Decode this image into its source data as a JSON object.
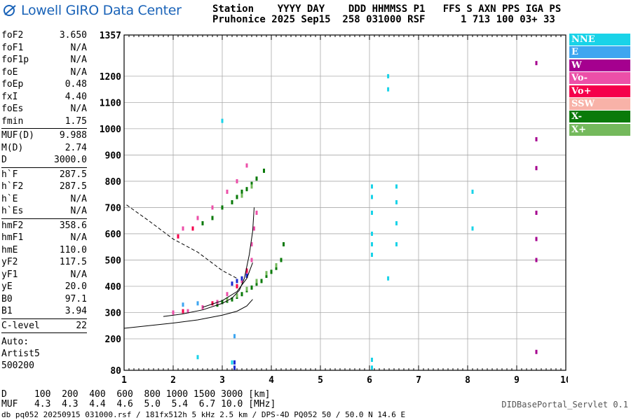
{
  "logo": {
    "text": "Lowell GIRO Data Center"
  },
  "header": {
    "line1": "Station    YYYY DAY    DDD HHMMSS P1   FFS S AXN PPS IGA PS",
    "line2": "Pruhonice 2025 Sep15  258 031000 RSF      1 713 100 03+ 33"
  },
  "params": {
    "group1": [
      {
        "label": "foF2",
        "value": "3.650"
      },
      {
        "label": "foF1",
        "value": "N/A"
      },
      {
        "label": "foF1p",
        "value": "N/A"
      },
      {
        "label": "foE",
        "value": "N/A"
      },
      {
        "label": "foEp",
        "value": "0.48"
      },
      {
        "label": "fxI",
        "value": "4.40"
      },
      {
        "label": "foEs",
        "value": "N/A"
      },
      {
        "label": "fmin",
        "value": "1.75"
      }
    ],
    "group2": [
      {
        "label": "MUF(D)",
        "value": "9.988"
      },
      {
        "label": "M(D)",
        "value": "2.74"
      },
      {
        "label": "D",
        "value": "3000.0"
      }
    ],
    "group3": [
      {
        "label": "h`F",
        "value": "287.5"
      },
      {
        "label": "h`F2",
        "value": "287.5"
      },
      {
        "label": "h`E",
        "value": "N/A"
      },
      {
        "label": "h`Es",
        "value": "N/A"
      }
    ],
    "group4": [
      {
        "label": "hmF2",
        "value": "358.6"
      },
      {
        "label": "hmF1",
        "value": "N/A"
      },
      {
        "label": "hmE",
        "value": "110.0"
      },
      {
        "label": "yF2",
        "value": "117.5"
      },
      {
        "label": "yF1",
        "value": "N/A"
      },
      {
        "label": "yE",
        "value": "20.0"
      },
      {
        "label": "B0",
        "value": "97.1"
      },
      {
        "label": "B1",
        "value": "3.94"
      }
    ],
    "group5": [
      {
        "label": "C-level",
        "value": "22"
      }
    ],
    "auto": [
      "Auto:",
      "Artist5",
      "500200"
    ]
  },
  "legend": [
    {
      "label": "NNE",
      "color": "#19d3e8"
    },
    {
      "label": "E",
      "color": "#3ea6f0"
    },
    {
      "label": "W",
      "color": "#a5008f"
    },
    {
      "label": "Vo-",
      "color": "#ec4fa8"
    },
    {
      "label": "Vo+",
      "color": "#f5004b"
    },
    {
      "label": "SSW",
      "color": "#f8b2a8"
    },
    {
      "label": "X-",
      "color": "#0a7a0a"
    },
    {
      "label": "X+",
      "color": "#74b95c"
    }
  ],
  "muf_table": {
    "line1": "D     100  200  400  600  800 1000 1500 3000 [km]",
    "line2": "MUF   4.3  4.3  4.4  4.6  5.0  5.4  6.7 10.0 [MHz]"
  },
  "footer": "db pq052 20250915 031000.rsf / 181fx512h 5 kHz 2.5 km / DPS-4D PQ052 50 / 50.0 N 14.6 E",
  "servlet": "DIDBasePortal_Servlet 0.1",
  "chart_data": {
    "type": "scatter",
    "xlim": [
      1,
      10
    ],
    "ylim": [
      80,
      1357
    ],
    "x_ticks": [
      "1",
      "2",
      "3",
      "4",
      "5",
      "6",
      "7",
      "8",
      "9",
      "10"
    ],
    "y_ticks": [
      "80",
      "200",
      "300",
      "400",
      "500",
      "600",
      "700",
      "800",
      "900",
      "1000",
      "1100",
      "1200",
      "1357"
    ],
    "grid": true,
    "series": [
      {
        "name": "X-",
        "color": "#0a7a0a",
        "points": [
          [
            2.9,
            330
          ],
          [
            3.0,
            340
          ],
          [
            3.1,
            345
          ],
          [
            3.2,
            350
          ],
          [
            3.3,
            360
          ],
          [
            3.4,
            370
          ],
          [
            3.5,
            385
          ],
          [
            3.6,
            395
          ],
          [
            3.7,
            410
          ],
          [
            3.8,
            420
          ],
          [
            3.9,
            440
          ],
          [
            4.0,
            455
          ],
          [
            4.1,
            470
          ],
          [
            4.2,
            500
          ],
          [
            4.25,
            560
          ],
          [
            3.2,
            720
          ],
          [
            3.3,
            740
          ],
          [
            3.4,
            760
          ],
          [
            3.5,
            770
          ],
          [
            3.6,
            790
          ],
          [
            3.7,
            810
          ],
          [
            3.85,
            840
          ],
          [
            2.6,
            640
          ],
          [
            2.8,
            660
          ],
          [
            3.0,
            700
          ]
        ]
      },
      {
        "name": "X+",
        "color": "#74b95c",
        "points": [
          [
            3.1,
            350
          ],
          [
            3.3,
            365
          ],
          [
            3.5,
            390
          ],
          [
            3.7,
            420
          ],
          [
            3.9,
            450
          ],
          [
            4.1,
            480
          ],
          [
            3.4,
            745
          ],
          [
            3.6,
            780
          ]
        ]
      },
      {
        "name": "Vo-",
        "color": "#ec4fa8",
        "points": [
          [
            2.0,
            300
          ],
          [
            2.3,
            305
          ],
          [
            2.6,
            320
          ],
          [
            2.9,
            340
          ],
          [
            3.1,
            370
          ],
          [
            3.3,
            400
          ],
          [
            3.4,
            420
          ],
          [
            3.5,
            450
          ],
          [
            3.6,
            500
          ],
          [
            3.6,
            560
          ],
          [
            3.65,
            620
          ],
          [
            3.7,
            680
          ],
          [
            2.2,
            620
          ],
          [
            2.5,
            660
          ],
          [
            2.8,
            700
          ],
          [
            3.1,
            760
          ],
          [
            3.3,
            800
          ],
          [
            3.5,
            860
          ]
        ]
      },
      {
        "name": "Vo+",
        "color": "#f5004b",
        "points": [
          [
            2.2,
            305
          ],
          [
            2.8,
            335
          ],
          [
            3.3,
            400
          ],
          [
            3.5,
            460
          ],
          [
            2.1,
            590
          ],
          [
            2.4,
            620
          ]
        ]
      },
      {
        "name": "NNE",
        "color": "#19d3e8",
        "points": [
          [
            6.05,
            520
          ],
          [
            6.05,
            560
          ],
          [
            6.05,
            600
          ],
          [
            6.05,
            680
          ],
          [
            6.05,
            740
          ],
          [
            6.05,
            780
          ],
          [
            6.55,
            560
          ],
          [
            6.55,
            640
          ],
          [
            6.55,
            720
          ],
          [
            6.55,
            780
          ],
          [
            6.38,
            430
          ],
          [
            6.38,
            1150
          ],
          [
            6.38,
            1200
          ],
          [
            6.05,
            120
          ],
          [
            6.05,
            90
          ],
          [
            2.5,
            130
          ],
          [
            8.1,
            620
          ],
          [
            8.1,
            760
          ],
          [
            3.2,
            110
          ],
          [
            3.0,
            1030
          ]
        ]
      },
      {
        "name": "E",
        "color": "#3ea6f0",
        "points": [
          [
            2.2,
            330
          ],
          [
            2.5,
            335
          ],
          [
            3.25,
            210
          ]
        ]
      },
      {
        "name": "W",
        "color": "#a5008f",
        "points": [
          [
            9.4,
            1250
          ],
          [
            9.4,
            960
          ],
          [
            9.4,
            850
          ],
          [
            9.4,
            680
          ],
          [
            9.4,
            580
          ],
          [
            9.4,
            500
          ],
          [
            9.4,
            150
          ]
        ]
      },
      {
        "name": "blue",
        "color": "#1a2bd0",
        "points": [
          [
            3.2,
            410
          ],
          [
            3.3,
            420
          ],
          [
            3.4,
            430
          ],
          [
            3.5,
            440
          ],
          [
            3.25,
            110
          ],
          [
            3.25,
            90
          ]
        ]
      }
    ],
    "curves": [
      {
        "name": "virtual-height",
        "style": "solid",
        "points": [
          [
            1.8,
            285
          ],
          [
            2.2,
            295
          ],
          [
            2.6,
            310
          ],
          [
            3.0,
            335
          ],
          [
            3.2,
            355
          ],
          [
            3.35,
            385
          ],
          [
            3.45,
            430
          ],
          [
            3.55,
            520
          ],
          [
            3.62,
            610
          ],
          [
            3.65,
            700
          ]
        ]
      },
      {
        "name": "real-height",
        "style": "solid",
        "points": [
          [
            1.0,
            240
          ],
          [
            1.5,
            250
          ],
          [
            2.0,
            260
          ],
          [
            2.5,
            272
          ],
          [
            3.0,
            290
          ],
          [
            3.3,
            305
          ],
          [
            3.5,
            325
          ],
          [
            3.62,
            350
          ]
        ]
      },
      {
        "name": "x-trace",
        "style": "solid",
        "points": [
          [
            2.6,
            320
          ],
          [
            3.0,
            345
          ],
          [
            3.3,
            380
          ],
          [
            3.5,
            430
          ],
          [
            3.62,
            490
          ]
        ]
      },
      {
        "name": "muf",
        "style": "dashed",
        "points": [
          [
            1.05,
            710
          ],
          [
            1.5,
            650
          ],
          [
            2.0,
            580
          ],
          [
            2.5,
            530
          ],
          [
            3.0,
            460
          ],
          [
            3.3,
            430
          ]
        ]
      }
    ]
  }
}
